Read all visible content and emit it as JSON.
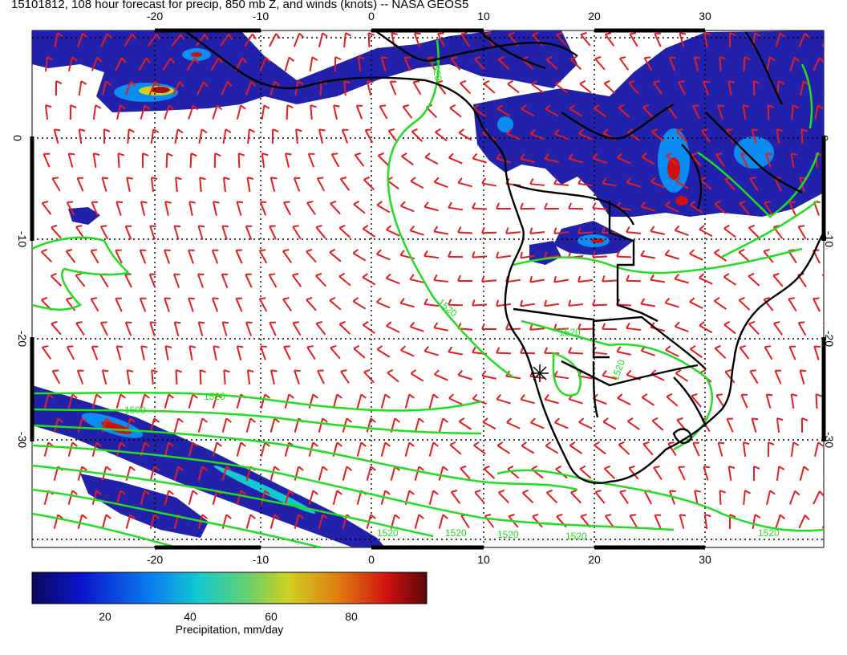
{
  "title": "15101812, 108 hour forecast for precip, 850 mb Z, and winds (knots) -- NASA GEOS5",
  "map": {
    "lon_ticks": [
      "-20",
      "-10",
      "0",
      "10",
      "20",
      "30"
    ],
    "lat_ticks": [
      "0",
      "-10",
      "-20",
      "-30"
    ],
    "contour_labels": [
      "1520",
      "1520",
      "1520",
      "1520",
      "1500",
      "1520",
      "1520",
      "1520",
      "1520",
      "1520",
      "1520"
    ],
    "colors": {
      "precip_low": "#1a1aa8",
      "contour": "#22dd22",
      "wind": "#e81c1c",
      "coast": "#000000"
    }
  },
  "colorbar": {
    "ticks": [
      "20",
      "40",
      "60",
      "80"
    ],
    "label": "Precipitation, mm/day"
  }
}
